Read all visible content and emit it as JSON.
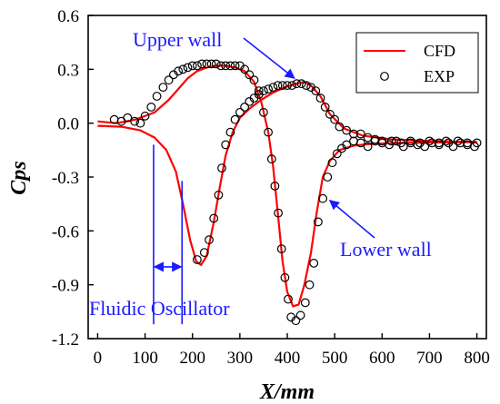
{
  "chart_data": {
    "type": "line",
    "xlabel": "X/mm",
    "ylabel": "Cps",
    "xlim": [
      -20,
      820
    ],
    "ylim": [
      -1.2,
      0.6
    ],
    "xticks": [
      0,
      100,
      200,
      300,
      400,
      500,
      600,
      700,
      800
    ],
    "xtick_labels": [
      "0",
      "100",
      "200",
      "300",
      "400",
      "500",
      "600",
      "700",
      "800"
    ],
    "yticks": [
      0.6,
      0.3,
      0.0,
      -0.3,
      -0.6,
      -0.9,
      -1.2
    ],
    "ytick_labels": [
      "0.6",
      "0.3",
      "0.0",
      "-0.3",
      "-0.6",
      "-0.9",
      "-1.2"
    ],
    "legend": {
      "position": "top-right",
      "entries": [
        {
          "label": "CFD",
          "style": "line",
          "color": "#ff0000"
        },
        {
          "label": "EXP",
          "style": "open-circle",
          "color": "#000000"
        }
      ]
    },
    "series": [
      {
        "name": "CFD",
        "style": "line",
        "color": "#ff0000",
        "points": [
          [
            0,
            0.01
          ],
          [
            40,
            0.0
          ],
          [
            80,
            0.02
          ],
          [
            120,
            0.06
          ],
          [
            150,
            0.13
          ],
          [
            170,
            0.19
          ],
          [
            190,
            0.25
          ],
          [
            210,
            0.29
          ],
          [
            230,
            0.31
          ],
          [
            250,
            0.32
          ],
          [
            270,
            0.32
          ],
          [
            290,
            0.31
          ],
          [
            310,
            0.29
          ],
          [
            330,
            0.23
          ],
          [
            345,
            0.12
          ],
          [
            360,
            -0.05
          ],
          [
            370,
            -0.24
          ],
          [
            380,
            -0.5
          ],
          [
            390,
            -0.77
          ],
          [
            400,
            -0.94
          ],
          [
            412,
            -1.02
          ],
          [
            424,
            -1.01
          ],
          [
            436,
            -0.9
          ],
          [
            450,
            -0.72
          ],
          [
            462,
            -0.5
          ],
          [
            475,
            -0.3
          ],
          [
            490,
            -0.21
          ],
          [
            510,
            -0.15
          ],
          [
            540,
            -0.125
          ],
          [
            580,
            -0.115
          ],
          [
            650,
            -0.11
          ],
          [
            800,
            -0.105
          ]
        ]
      },
      {
        "name": "CFD",
        "style": "line",
        "color": "#ff0000",
        "points": [
          [
            0,
            -0.015
          ],
          [
            50,
            -0.02
          ],
          [
            90,
            -0.04
          ],
          [
            120,
            -0.08
          ],
          [
            145,
            -0.15
          ],
          [
            165,
            -0.27
          ],
          [
            180,
            -0.45
          ],
          [
            195,
            -0.65
          ],
          [
            208,
            -0.77
          ],
          [
            218,
            -0.79
          ],
          [
            230,
            -0.74
          ],
          [
            245,
            -0.55
          ],
          [
            258,
            -0.35
          ],
          [
            270,
            -0.18
          ],
          [
            285,
            -0.05
          ],
          [
            300,
            0.03
          ],
          [
            320,
            0.08
          ],
          [
            345,
            0.13
          ],
          [
            370,
            0.17
          ],
          [
            395,
            0.2
          ],
          [
            420,
            0.22
          ],
          [
            435,
            0.23
          ],
          [
            450,
            0.21
          ],
          [
            470,
            0.15
          ],
          [
            490,
            0.05
          ],
          [
            520,
            -0.03
          ],
          [
            560,
            -0.07
          ],
          [
            620,
            -0.09
          ],
          [
            700,
            -0.1
          ],
          [
            800,
            -0.105
          ]
        ]
      },
      {
        "name": "EXP",
        "style": "open-circle",
        "color": "#000000",
        "points": [
          [
            35,
            0.02
          ],
          [
            50,
            0.01
          ],
          [
            63,
            0.03
          ],
          [
            78,
            0.01
          ],
          [
            90,
            0.0
          ],
          [
            100,
            0.04
          ],
          [
            113,
            0.09
          ],
          [
            125,
            0.15
          ],
          [
            138,
            0.2
          ],
          [
            150,
            0.24
          ],
          [
            160,
            0.27
          ],
          [
            170,
            0.29
          ],
          [
            180,
            0.3
          ],
          [
            190,
            0.31
          ],
          [
            200,
            0.32
          ],
          [
            210,
            0.32
          ],
          [
            220,
            0.33
          ],
          [
            230,
            0.33
          ],
          [
            240,
            0.33
          ],
          [
            250,
            0.33
          ],
          [
            260,
            0.32
          ],
          [
            270,
            0.32
          ],
          [
            280,
            0.32
          ],
          [
            290,
            0.32
          ],
          [
            300,
            0.32
          ],
          [
            310,
            0.3
          ],
          [
            320,
            0.27
          ],
          [
            330,
            0.24
          ],
          [
            340,
            0.18
          ],
          [
            350,
            0.06
          ],
          [
            360,
            -0.05
          ],
          [
            367,
            -0.2
          ],
          [
            374,
            -0.35
          ],
          [
            381,
            -0.5
          ],
          [
            388,
            -0.7
          ],
          [
            395,
            -0.86
          ],
          [
            402,
            -0.98
          ],
          [
            408,
            -1.08
          ],
          [
            418,
            -1.1
          ],
          [
            428,
            -1.07
          ],
          [
            438,
            -1.0
          ],
          [
            447,
            -0.9
          ],
          [
            456,
            -0.78
          ],
          [
            465,
            -0.55
          ],
          [
            475,
            -0.42
          ],
          [
            485,
            -0.3
          ],
          [
            495,
            -0.22
          ],
          [
            505,
            -0.17
          ],
          [
            515,
            -0.14
          ],
          [
            525,
            -0.12
          ],
          [
            540,
            -0.1
          ],
          [
            555,
            -0.11
          ],
          [
            570,
            -0.13
          ],
          [
            585,
            -0.1
          ],
          [
            600,
            -0.11
          ],
          [
            615,
            -0.12
          ],
          [
            630,
            -0.1
          ],
          [
            645,
            -0.13
          ],
          [
            660,
            -0.1
          ],
          [
            675,
            -0.12
          ],
          [
            690,
            -0.13
          ],
          [
            705,
            -0.11
          ],
          [
            720,
            -0.12
          ],
          [
            735,
            -0.1
          ],
          [
            750,
            -0.13
          ],
          [
            765,
            -0.11
          ],
          [
            780,
            -0.12
          ],
          [
            795,
            -0.13
          ]
        ]
      },
      {
        "name": "EXP",
        "style": "open-circle",
        "color": "#000000",
        "points": [
          [
            210,
            -0.76
          ],
          [
            225,
            -0.72
          ],
          [
            235,
            -0.65
          ],
          [
            245,
            -0.53
          ],
          [
            255,
            -0.4
          ],
          [
            262,
            -0.25
          ],
          [
            270,
            -0.12
          ],
          [
            280,
            -0.05
          ],
          [
            290,
            0.02
          ],
          [
            300,
            0.06
          ],
          [
            310,
            0.09
          ],
          [
            320,
            0.12
          ],
          [
            330,
            0.14
          ],
          [
            340,
            0.16
          ],
          [
            350,
            0.18
          ],
          [
            360,
            0.19
          ],
          [
            370,
            0.2
          ],
          [
            380,
            0.21
          ],
          [
            390,
            0.21
          ],
          [
            400,
            0.21
          ],
          [
            410,
            0.21
          ],
          [
            420,
            0.22
          ],
          [
            430,
            0.22
          ],
          [
            440,
            0.21
          ],
          [
            450,
            0.2
          ],
          [
            460,
            0.18
          ],
          [
            470,
            0.14
          ],
          [
            480,
            0.09
          ],
          [
            490,
            0.05
          ],
          [
            500,
            0.02
          ],
          [
            510,
            -0.02
          ],
          [
            525,
            -0.04
          ],
          [
            540,
            -0.06
          ],
          [
            555,
            -0.06
          ],
          [
            570,
            -0.08
          ],
          [
            585,
            -0.09
          ],
          [
            600,
            -0.1
          ],
          [
            620,
            -0.1
          ],
          [
            640,
            -0.11
          ],
          [
            660,
            -0.11
          ],
          [
            680,
            -0.11
          ],
          [
            700,
            -0.1
          ],
          [
            720,
            -0.11
          ],
          [
            740,
            -0.11
          ],
          [
            760,
            -0.1
          ],
          [
            780,
            -0.11
          ],
          [
            800,
            -0.11
          ]
        ]
      }
    ],
    "annotations": [
      {
        "text": "Upper wall",
        "color": "#1a1aff",
        "arrow_to": [
          415,
          0.23
        ]
      },
      {
        "text": "Lower wall",
        "color": "#1a1aff",
        "arrow_to": [
          480,
          -0.45
        ]
      },
      {
        "text": "Fluidic Oscillator",
        "color": "#1a1aff",
        "span": [
          118,
          178
        ],
        "span_y": -0.8
      }
    ]
  }
}
